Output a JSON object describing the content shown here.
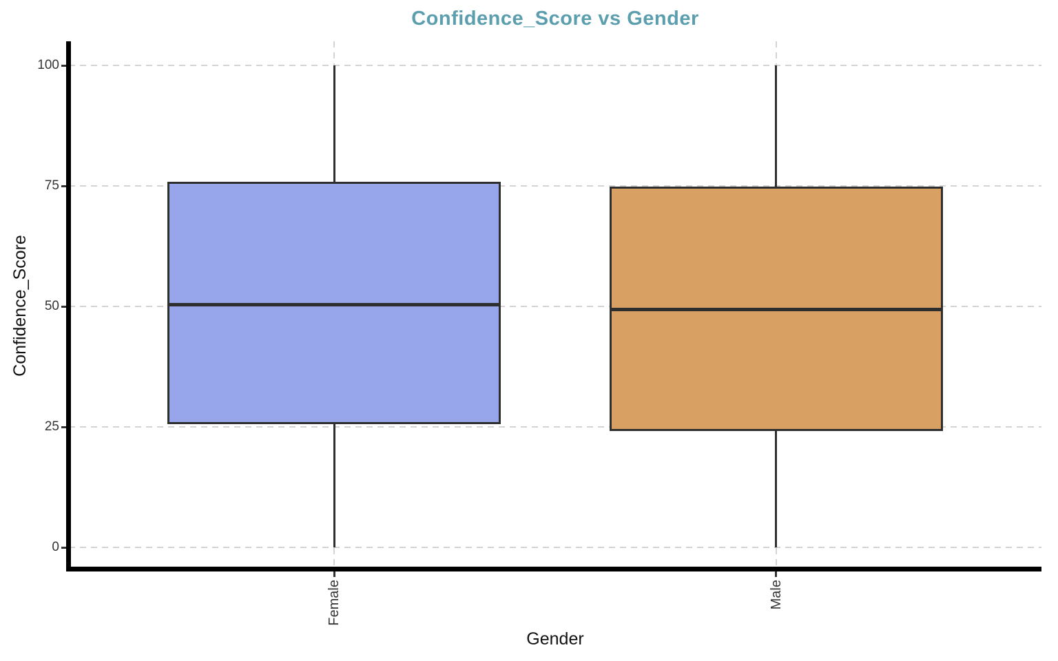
{
  "title": {
    "text": "Confidence_Score vs Gender"
  },
  "x_axis": {
    "label": "Gender",
    "tick_labels": [
      "Female",
      "Male"
    ]
  },
  "y_axis": {
    "label": "Confidence_Score",
    "tick_labels": [
      "0",
      "25",
      "50",
      "75",
      "100"
    ],
    "tick_values": [
      0,
      25,
      50,
      75,
      100
    ],
    "range": [
      0,
      100
    ]
  },
  "chart_data": {
    "type": "boxplot",
    "title": "Confidence_Score vs Gender",
    "xlabel": "Gender",
    "ylabel": "Confidence_Score",
    "ylim": [
      0,
      100
    ],
    "y_ticks": [
      0,
      25,
      50,
      75,
      100
    ],
    "grid": "dashed horizontal gridlines at y ticks, dashed vertical gridlines at category centers",
    "legend": "none",
    "categories": [
      "Female",
      "Male"
    ],
    "series": [
      {
        "name": "Female",
        "min": 0,
        "q1": 25.8,
        "median": 50.4,
        "q3": 75.6,
        "max": 100,
        "outliers": [],
        "fill_color": "#97A5EA"
      },
      {
        "name": "Male",
        "min": 0,
        "q1": 24.4,
        "median": 49.3,
        "q3": 74.6,
        "max": 100,
        "outliers": [],
        "fill_color": "#D9A064"
      }
    ]
  },
  "colors": {
    "background": "#FFFFFF",
    "title": "#5B9EAD",
    "box_border": "#2E2E2E",
    "median_line": "#2E2E2E",
    "whisker": "#2E2E2E",
    "gridline": "#D4D4D4",
    "axis_line": "#000000",
    "tick_text": "#333333",
    "axis_title_text": "#111111"
  }
}
